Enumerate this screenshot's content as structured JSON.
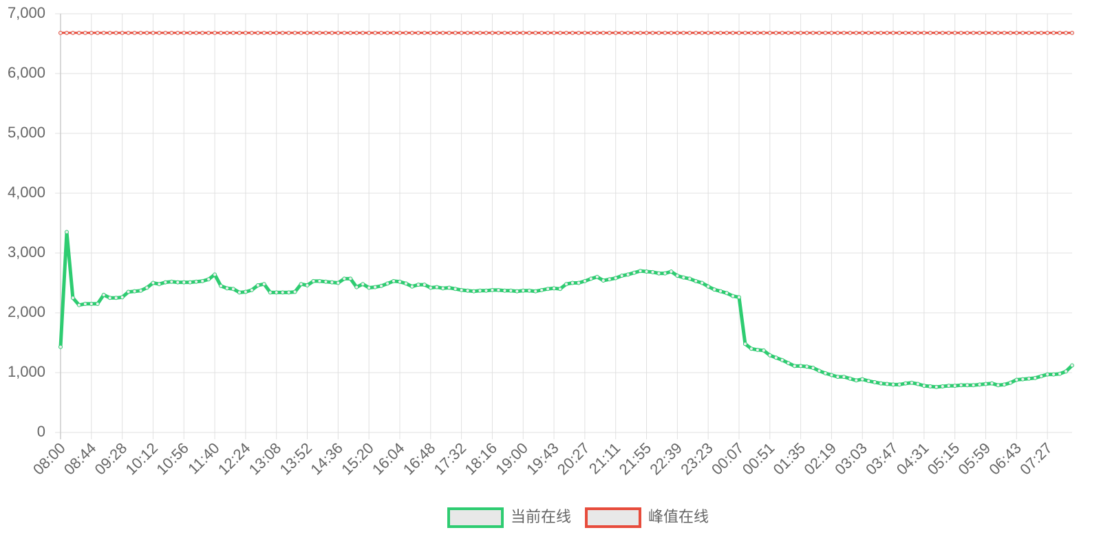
{
  "chart_data": {
    "type": "line",
    "categories": [
      "08:00",
      null,
      null,
      null,
      null,
      "08:44",
      null,
      null,
      null,
      null,
      "09:28",
      null,
      null,
      null,
      null,
      "10:12",
      null,
      null,
      null,
      null,
      "10:56",
      null,
      null,
      null,
      null,
      "11:40",
      null,
      null,
      null,
      null,
      "12:24",
      null,
      null,
      null,
      null,
      "13:08",
      null,
      null,
      null,
      null,
      "13:52",
      null,
      null,
      null,
      null,
      "14:36",
      null,
      null,
      null,
      null,
      "15:20",
      null,
      null,
      null,
      null,
      "16:04",
      null,
      null,
      null,
      null,
      "16:48",
      null,
      null,
      null,
      null,
      "17:32",
      null,
      null,
      null,
      null,
      "18:16",
      null,
      null,
      null,
      null,
      "19:00",
      null,
      null,
      null,
      null,
      "19:43",
      null,
      null,
      null,
      null,
      "20:27",
      null,
      null,
      null,
      null,
      "21:11",
      null,
      null,
      null,
      null,
      "21:55",
      null,
      null,
      null,
      null,
      "22:39",
      null,
      null,
      null,
      null,
      "23:23",
      null,
      null,
      null,
      null,
      "00:07",
      null,
      null,
      null,
      null,
      "00:51",
      null,
      null,
      null,
      null,
      "01:35",
      null,
      null,
      null,
      null,
      "02:19",
      null,
      null,
      null,
      null,
      "03:03",
      null,
      null,
      null,
      null,
      "03:47",
      null,
      null,
      null,
      null,
      "04:31",
      null,
      null,
      null,
      null,
      "05:15",
      null,
      null,
      null,
      null,
      "05:59",
      null,
      null,
      null,
      null,
      "06:43",
      null,
      null,
      null,
      null,
      "07:27",
      null,
      null,
      null,
      null
    ],
    "series": [
      {
        "name": "当前在线",
        "color": "#2ecc71",
        "values": [
          1430,
          3350,
          2250,
          2130,
          2150,
          2150,
          2150,
          2300,
          2250,
          2250,
          2260,
          2350,
          2360,
          2370,
          2420,
          2500,
          2480,
          2510,
          2520,
          2510,
          2510,
          2510,
          2520,
          2530,
          2560,
          2640,
          2450,
          2410,
          2400,
          2340,
          2350,
          2380,
          2460,
          2480,
          2340,
          2340,
          2340,
          2340,
          2350,
          2480,
          2460,
          2530,
          2530,
          2520,
          2510,
          2500,
          2570,
          2570,
          2430,
          2480,
          2420,
          2430,
          2450,
          2490,
          2530,
          2520,
          2490,
          2440,
          2470,
          2470,
          2420,
          2430,
          2410,
          2420,
          2400,
          2380,
          2370,
          2360,
          2370,
          2370,
          2380,
          2380,
          2370,
          2370,
          2360,
          2370,
          2370,
          2360,
          2380,
          2400,
          2410,
          2400,
          2480,
          2500,
          2500,
          2530,
          2570,
          2600,
          2540,
          2560,
          2580,
          2620,
          2640,
          2670,
          2700,
          2690,
          2680,
          2660,
          2660,
          2690,
          2620,
          2590,
          2570,
          2530,
          2500,
          2440,
          2390,
          2360,
          2330,
          2280,
          2260,
          1480,
          1400,
          1380,
          1370,
          1290,
          1250,
          1210,
          1160,
          1110,
          1110,
          1100,
          1080,
          1030,
          990,
          960,
          930,
          930,
          900,
          870,
          890,
          860,
          840,
          820,
          810,
          800,
          800,
          820,
          830,
          810,
          780,
          770,
          760,
          770,
          780,
          780,
          790,
          790,
          790,
          800,
          810,
          820,
          790,
          800,
          830,
          880,
          890,
          900,
          910,
          940,
          970,
          970,
          980,
          1020,
          1120
        ]
      },
      {
        "name": "峰值在线",
        "color": "#e74c3c",
        "values": [
          6680,
          6680,
          6680,
          6680,
          6680,
          6680,
          6680,
          6680,
          6680,
          6680,
          6680,
          6680,
          6680,
          6680,
          6680,
          6680,
          6680,
          6680,
          6680,
          6680,
          6680,
          6680,
          6680,
          6680,
          6680,
          6680,
          6680,
          6680,
          6680,
          6680,
          6680,
          6680,
          6680,
          6680,
          6680,
          6680,
          6680,
          6680,
          6680,
          6680,
          6680,
          6680,
          6680,
          6680,
          6680,
          6680,
          6680,
          6680,
          6680,
          6680,
          6680,
          6680,
          6680,
          6680,
          6680,
          6680,
          6680,
          6680,
          6680,
          6680,
          6680,
          6680,
          6680,
          6680,
          6680,
          6680,
          6680,
          6680,
          6680,
          6680,
          6680,
          6680,
          6680,
          6680,
          6680,
          6680,
          6680,
          6680,
          6680,
          6680,
          6680,
          6680,
          6680,
          6680,
          6680,
          6680,
          6680,
          6680,
          6680,
          6680,
          6680,
          6680,
          6680,
          6680,
          6680,
          6680,
          6680,
          6680,
          6680,
          6680,
          6680,
          6680,
          6680,
          6680,
          6680,
          6680,
          6680,
          6680,
          6680,
          6680,
          6680,
          6680,
          6680,
          6680,
          6680,
          6680,
          6680,
          6680,
          6680,
          6680,
          6680,
          6680,
          6680,
          6680,
          6680,
          6680,
          6680,
          6680,
          6680,
          6680,
          6680,
          6680,
          6680,
          6680,
          6680,
          6680,
          6680,
          6680,
          6680,
          6680,
          6680,
          6680,
          6680,
          6680,
          6680,
          6680,
          6680,
          6680,
          6680,
          6680,
          6680,
          6680,
          6680,
          6680,
          6680,
          6680,
          6680,
          6680,
          6680,
          6680,
          6680,
          6680,
          6680,
          6680,
          6680
        ]
      }
    ],
    "ylim": [
      0,
      7000
    ],
    "yticks": [
      0,
      {
        "value": 1000,
        "label": "1,000"
      },
      {
        "value": 2000,
        "label": "2,000"
      },
      {
        "value": 3000,
        "label": "3,000"
      },
      {
        "value": 4000,
        "label": "4,000"
      },
      {
        "value": 5000,
        "label": "5,000"
      },
      {
        "value": 6000,
        "label": "6,000"
      },
      {
        "value": 7000,
        "label": "7,000"
      }
    ],
    "grid": true
  }
}
